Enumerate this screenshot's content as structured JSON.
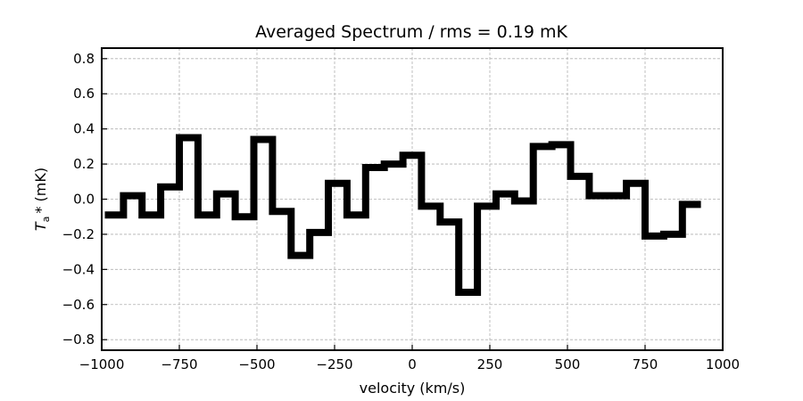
{
  "chart_data": {
    "type": "line",
    "step": "mid",
    "title": "Averaged Spectrum / rms = 0.19 mK",
    "xlabel": "velocity (km/s)",
    "ylabel_main": "T",
    "ylabel_sub": "a",
    "ylabel_rest": "* (mK)",
    "xlim": [
      -1000,
      1000
    ],
    "ylim": [
      -0.86,
      0.86
    ],
    "xticks": [
      -1000,
      -750,
      -500,
      -250,
      0,
      250,
      500,
      750,
      1000
    ],
    "xtick_labels": [
      "−1000",
      "−750",
      "−500",
      "−250",
      "0",
      "250",
      "500",
      "750",
      "1000"
    ],
    "yticks": [
      -0.8,
      -0.6,
      -0.4,
      -0.2,
      0.0,
      0.2,
      0.4,
      0.6,
      0.8
    ],
    "ytick_labels": [
      "−0.8",
      "−0.6",
      "−0.4",
      "−0.2",
      "0.0",
      "0.2",
      "0.4",
      "0.6",
      "0.8"
    ],
    "grid": true,
    "series": [
      {
        "color": "#000000",
        "x": [
          -960,
          -900,
          -840,
          -780,
          -720,
          -660,
          -600,
          -540,
          -480,
          -420,
          -360,
          -300,
          -240,
          -180,
          -120,
          -60,
          0,
          60,
          120,
          180,
          240,
          300,
          360,
          420,
          480,
          540,
          600,
          660,
          720,
          780,
          840,
          900
        ],
        "y": [
          -0.09,
          0.02,
          -0.09,
          0.07,
          0.35,
          -0.09,
          0.03,
          -0.1,
          0.34,
          -0.07,
          -0.32,
          -0.19,
          0.09,
          -0.09,
          0.18,
          0.2,
          0.25,
          -0.04,
          -0.13,
          -0.53,
          -0.04,
          0.03,
          -0.01,
          0.3,
          0.31,
          0.13,
          0.02,
          0.02,
          0.09,
          -0.21,
          -0.2,
          -0.03
        ]
      }
    ]
  }
}
